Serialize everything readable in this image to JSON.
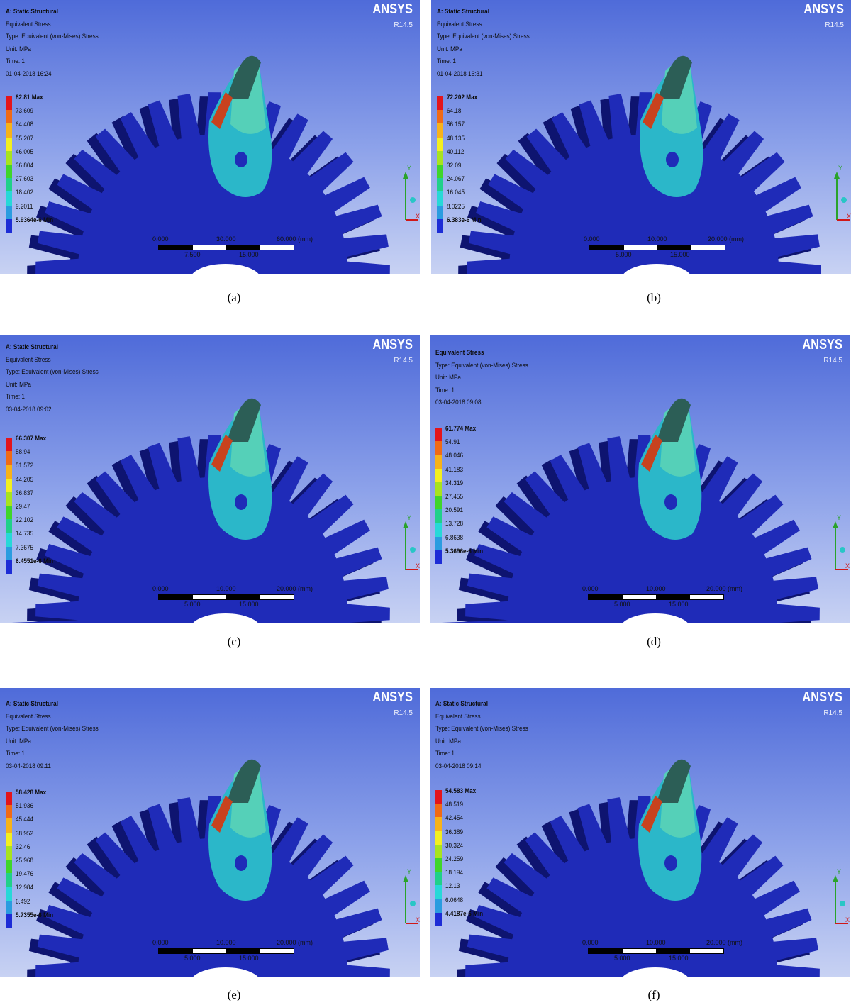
{
  "panels": [
    {
      "id": "a",
      "caption": "(a)",
      "software": "ANSYS",
      "version": "R14.5",
      "info": [
        "A: Static Structural",
        "Equivalent Stress",
        "Type: Equivalent (von-Mises) Stress",
        "Unit: MPa",
        "Time: 1",
        "01-04-2018 16:24"
      ],
      "legend": [
        "82.81 Max",
        "73.609",
        "64.408",
        "55.207",
        "46.005",
        "36.804",
        "27.603",
        "18.402",
        "9.2011",
        "5.9364e-6 Min"
      ],
      "scale_top": [
        "0.000",
        "30.000",
        "60.000 (mm)"
      ],
      "scale_bottom": [
        "7.500",
        "15.000"
      ],
      "axes": {
        "y": "Y",
        "x": "X",
        "z": "Z"
      }
    },
    {
      "id": "b",
      "caption": "(b)",
      "software": "ANSYS",
      "version": "R14.5",
      "info": [
        "A: Static Structural",
        "Equivalent Stress",
        "Type: Equivalent (von-Mises) Stress",
        "Unit: MPa",
        "Time: 1",
        "01-04-2018 16:31"
      ],
      "legend": [
        "72.202 Max",
        "64.18",
        "56.157",
        "48.135",
        "40.112",
        "32.09",
        "24.067",
        "16.045",
        "8.0225",
        "6.383e-6 Min"
      ],
      "scale_top": [
        "0.000",
        "10.000",
        "20.000 (mm)"
      ],
      "scale_bottom": [
        "5.000",
        "15.000"
      ],
      "axes": {
        "y": "Y",
        "x": "X",
        "z": "Z"
      }
    },
    {
      "id": "c",
      "caption": "(c)",
      "software": "ANSYS",
      "version": "R14.5",
      "info": [
        "A: Static Structural",
        "Equivalent Stress",
        "Type: Equivalent (von-Mises) Stress",
        "Unit: MPa",
        "Time: 1",
        "03-04-2018 09:02"
      ],
      "legend": [
        "66.307 Max",
        "58.94",
        "51.572",
        "44.205",
        "36.837",
        "29.47",
        "22.102",
        "14.735",
        "7.3675",
        "6.4551e-6 Min"
      ],
      "scale_top": [
        "0.000",
        "10.000",
        "20.000 (mm)"
      ],
      "scale_bottom": [
        "5.000",
        "15.000"
      ],
      "axes": {
        "y": "Y",
        "x": "X",
        "z": "Z"
      }
    },
    {
      "id": "d",
      "caption": "(d)",
      "software": "ANSYS",
      "version": "R14.5",
      "info": [
        "Equivalent Stress",
        "Type: Equivalent (von-Mises) Stress",
        "Unit: MPa",
        "Time: 1",
        "03-04-2018 09:08"
      ],
      "legend": [
        "61.774 Max",
        "54.91",
        "48.046",
        "41.183",
        "34.319",
        "27.455",
        "20.591",
        "13.728",
        "6.8638",
        "5.3696e-6 Min"
      ],
      "scale_top": [
        "0.000",
        "10.000",
        "20.000 (mm)"
      ],
      "scale_bottom": [
        "5.000",
        "15.000"
      ],
      "axes": {
        "y": "Y",
        "x": "X",
        "z": "Z"
      }
    },
    {
      "id": "e",
      "caption": "(e)",
      "software": "ANSYS",
      "version": "R14.5",
      "info": [
        "A: Static Structural",
        "Equivalent Stress",
        "Type: Equivalent (von-Mises) Stress",
        "Unit: MPa",
        "Time: 1",
        "03-04-2018 09:11"
      ],
      "legend": [
        "58.428 Max",
        "51.936",
        "45.444",
        "38.952",
        "32.46",
        "25.968",
        "19.476",
        "12.984",
        "6.492",
        "5.7355e-6 Min"
      ],
      "scale_top": [
        "0.000",
        "10.000",
        "20.000 (mm)"
      ],
      "scale_bottom": [
        "5.000",
        "15.000"
      ],
      "axes": {
        "y": "Y",
        "x": "X",
        "z": "Z"
      }
    },
    {
      "id": "f",
      "caption": "(f)",
      "software": "ANSYS",
      "version": "R14.5",
      "info": [
        "A: Static Structural",
        "Equivalent Stress",
        "Type: Equivalent (von-Mises) Stress",
        "Unit: MPa",
        "Time: 1",
        "03-04-2018 09:14"
      ],
      "legend": [
        "54.583 Max",
        "48.519",
        "42.454",
        "36.389",
        "30.324",
        "24.259",
        "18.194",
        "12.13",
        "6.0648",
        "4.4187e-6 Min"
      ],
      "scale_top": [
        "0.000",
        "10.000",
        "20.000 (mm)"
      ],
      "scale_bottom": [
        "5.000",
        "15.000"
      ],
      "axes": {
        "y": "Y",
        "x": "X",
        "z": "Z"
      }
    }
  ],
  "legend_colors": [
    "#e3141b",
    "#f06a16",
    "#f7b21a",
    "#f3ef21",
    "#a8e31f",
    "#3fd52b",
    "#20d08a",
    "#27d8d8",
    "#2a9ce0",
    "#1d2cd6"
  ],
  "model_colors": {
    "gear_body": "#1f2bb8",
    "gear_side": "#0e1470",
    "stress_low": "#2bb7c9",
    "stress_mid": "#55d0b8",
    "stress_high": "#c8421e",
    "tooth_top": "#2c5e56"
  }
}
